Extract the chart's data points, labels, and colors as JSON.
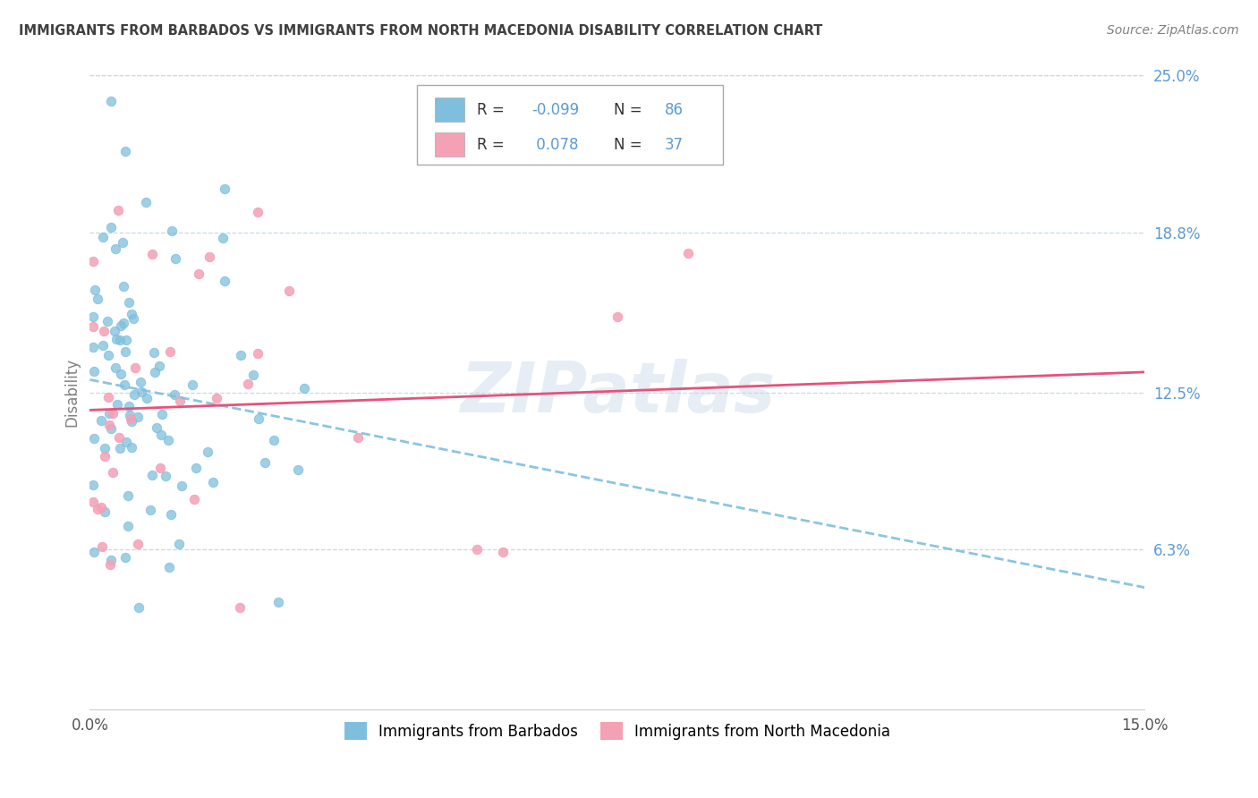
{
  "title": "IMMIGRANTS FROM BARBADOS VS IMMIGRANTS FROM NORTH MACEDONIA DISABILITY CORRELATION CHART",
  "source": "Source: ZipAtlas.com",
  "ylabel": "Disability",
  "xmin": 0.0,
  "xmax": 0.15,
  "ymin": 0.0,
  "ymax": 0.25,
  "ytick_vals": [
    0.063,
    0.125,
    0.188,
    0.25
  ],
  "ytick_labels": [
    "6.3%",
    "12.5%",
    "18.8%",
    "25.0%"
  ],
  "xtick_vals": [
    0.0,
    0.15
  ],
  "xtick_labels": [
    "0.0%",
    "15.0%"
  ],
  "barbados_color": "#7fbfdd",
  "macedonia_color": "#f4a0b5",
  "barbados_R": -0.099,
  "barbados_N": 86,
  "macedonia_R": 0.078,
  "macedonia_N": 37,
  "watermark": "ZIPatlas",
  "legend_label_barbados": "Immigrants from Barbados",
  "legend_label_macedonia": "Immigrants from North Macedonia",
  "legend_R_color": "#5b9bd5",
  "grid_color": "#c8d8e8",
  "barbados_line_color": "#7fbfdd",
  "macedonia_line_color": "#e8517a",
  "title_color": "#404040",
  "source_color": "#808080",
  "ylabel_color": "#808080"
}
